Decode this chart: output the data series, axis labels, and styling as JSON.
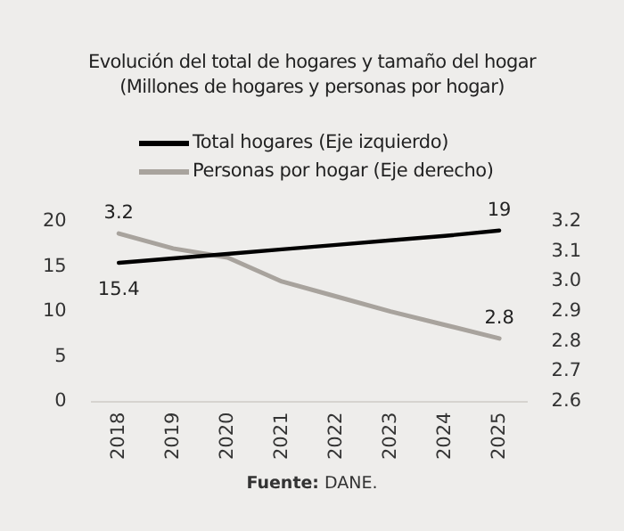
{
  "chart_data": {
    "type": "line",
    "title": "Evolución del total de hogares y tamaño del hogar",
    "subtitle": "(Millones de hogares y personas por hogar)",
    "categories": [
      "2018",
      "2019",
      "2020",
      "2021",
      "2022",
      "2023",
      "2024",
      "2025"
    ],
    "series": [
      {
        "name": "Total hogares (Eje izquierdo)",
        "color": "#000000",
        "values": [
          15.4,
          15.9,
          16.4,
          16.9,
          17.4,
          17.9,
          18.4,
          19.0
        ],
        "value_labels": [
          "15.4",
          null,
          null,
          null,
          null,
          null,
          null,
          "19"
        ]
      },
      {
        "name": "Personas por hogar (Eje derecho)",
        "color": "#a8a39d",
        "axis": "y2",
        "values": [
          3.16,
          3.11,
          3.08,
          3.0,
          2.95,
          2.9,
          2.855,
          2.81
        ],
        "value_labels": [
          "3.2",
          null,
          null,
          null,
          null,
          null,
          null,
          "2.8"
        ]
      }
    ],
    "ylim": [
      0,
      20
    ],
    "yticks": [
      0,
      5,
      10,
      15,
      20
    ],
    "y2lim": [
      2.6,
      3.2
    ],
    "y2ticks": [
      {
        "value": 2.6,
        "label": "2.6"
      },
      {
        "value": 2.7,
        "label": "2.7"
      },
      {
        "value": 2.8,
        "label": "2.8"
      },
      {
        "value": 2.9,
        "label": "2.9"
      },
      {
        "value": 3.0,
        "label": "3.0"
      },
      {
        "value": 3.1,
        "label": "3.1"
      },
      {
        "value": 3.2,
        "label": "3.2"
      }
    ],
    "grid": false,
    "legend": "top",
    "marker": "none",
    "line_style": "solid",
    "annotations": [
      "Fuente: DANE."
    ]
  }
}
